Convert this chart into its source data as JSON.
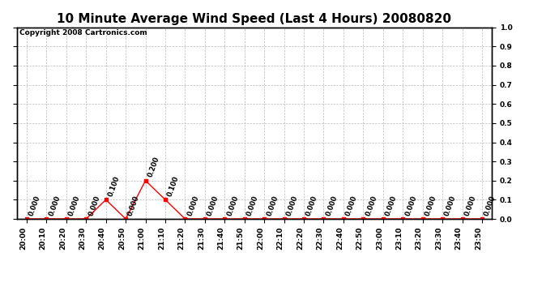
{
  "title": "10 Minute Average Wind Speed (Last 4 Hours) 20080820",
  "copyright_text": "Copyright 2008 Cartronics.com",
  "x_labels": [
    "20:00",
    "20:10",
    "20:20",
    "20:30",
    "20:40",
    "20:50",
    "21:00",
    "21:10",
    "21:20",
    "21:30",
    "21:40",
    "21:50",
    "22:00",
    "22:10",
    "22:20",
    "22:30",
    "22:40",
    "22:50",
    "23:00",
    "23:10",
    "23:20",
    "23:30",
    "23:40",
    "23:50"
  ],
  "y_values": [
    0.0,
    0.0,
    0.0,
    0.0,
    0.1,
    0.0,
    0.2,
    0.1,
    0.0,
    0.0,
    0.0,
    0.0,
    0.0,
    0.0,
    0.0,
    0.0,
    0.0,
    0.0,
    0.0,
    0.0,
    0.0,
    0.0,
    0.0,
    0.0
  ],
  "ylim": [
    0.0,
    1.0
  ],
  "yticks": [
    0.0,
    0.1,
    0.2,
    0.3,
    0.4,
    0.5,
    0.6,
    0.7,
    0.8,
    0.9,
    1.0
  ],
  "line_color": "red",
  "marker_color": "red",
  "grid_color": "#bbbbbb",
  "bg_color": "#ffffff",
  "title_fontsize": 11,
  "copyright_fontsize": 6.5,
  "tick_fontsize": 6.5,
  "annot_fontsize": 6,
  "label_rotation": 90
}
